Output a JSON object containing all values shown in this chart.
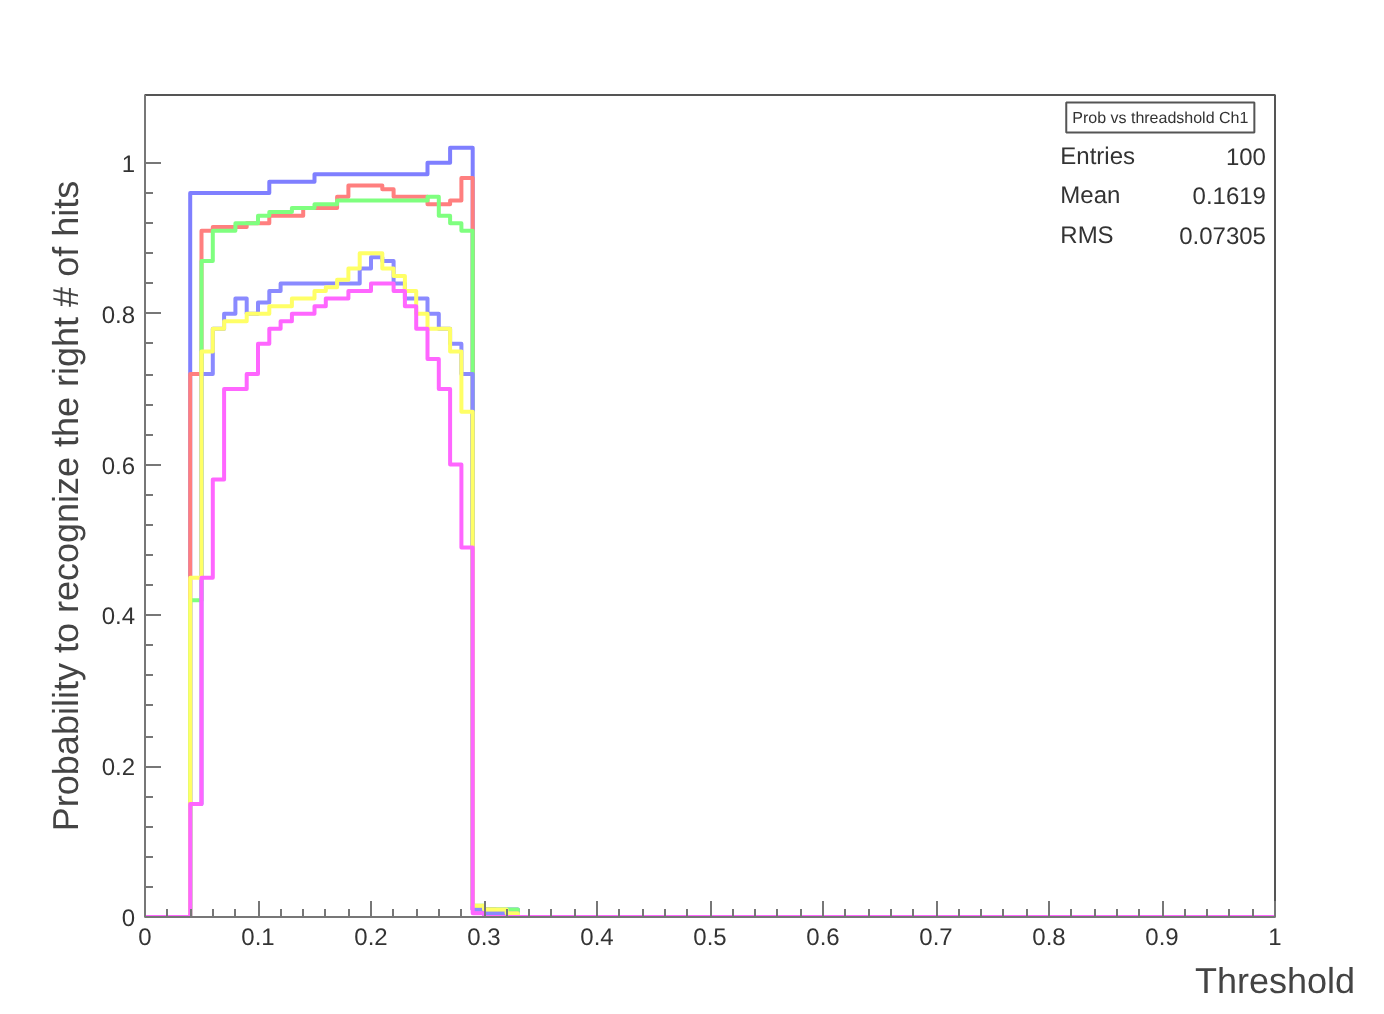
{
  "chart_data": {
    "type": "histogram",
    "xlabel": "Threshold",
    "ylabel": "Probability to recognize the right # of hits",
    "bins": [
      0,
      0.04,
      0.05,
      0.06,
      0.07,
      0.08,
      0.09,
      0.1,
      0.11,
      0.12,
      0.13,
      0.14,
      0.15,
      0.16,
      0.17,
      0.18,
      0.19,
      0.2,
      0.21,
      0.22,
      0.23,
      0.24,
      0.25,
      0.26,
      0.27,
      0.28,
      0.29,
      0.3,
      0.31,
      0.32,
      0.33,
      1
    ],
    "series": [
      {
        "color": "#7f7fff",
        "values": [
          0,
          0.96,
          0.96,
          0.96,
          0.96,
          0.96,
          0.96,
          0.96,
          0.975,
          0.975,
          0.975,
          0.975,
          0.985,
          0.985,
          0.985,
          0.985,
          0.985,
          0.985,
          0.985,
          0.985,
          0.985,
          0.985,
          1.0,
          1.0,
          1.02,
          1.02,
          0.01,
          0.01,
          0.01,
          0.01,
          0
        ]
      },
      {
        "color": "#ff7f7f",
        "values": [
          0,
          0.72,
          0.91,
          0.915,
          0.915,
          0.915,
          0.92,
          0.92,
          0.93,
          0.93,
          0.93,
          0.94,
          0.94,
          0.94,
          0.955,
          0.97,
          0.97,
          0.97,
          0.965,
          0.955,
          0.955,
          0.955,
          0.945,
          0.945,
          0.95,
          0.98,
          0.01,
          0.01,
          0.005,
          0.005,
          0
        ]
      },
      {
        "color": "#7fff7f",
        "values": [
          0,
          0.42,
          0.87,
          0.91,
          0.91,
          0.92,
          0.92,
          0.93,
          0.935,
          0.935,
          0.94,
          0.94,
          0.945,
          0.945,
          0.95,
          0.95,
          0.95,
          0.95,
          0.95,
          0.95,
          0.95,
          0.95,
          0.955,
          0.93,
          0.92,
          0.91,
          0.015,
          0.01,
          0.01,
          0.01,
          0
        ]
      },
      {
        "color": "#8a8aff",
        "values": [
          0,
          0.15,
          0.72,
          0.78,
          0.8,
          0.82,
          0.8,
          0.815,
          0.83,
          0.84,
          0.84,
          0.84,
          0.84,
          0.84,
          0.84,
          0.84,
          0.86,
          0.875,
          0.87,
          0.84,
          0.82,
          0.82,
          0.8,
          0.78,
          0.76,
          0.72,
          0.01,
          0.005,
          0.005,
          0.005,
          0
        ]
      },
      {
        "color": "#ffff66",
        "values": [
          0,
          0.45,
          0.75,
          0.78,
          0.79,
          0.79,
          0.8,
          0.8,
          0.81,
          0.81,
          0.82,
          0.82,
          0.83,
          0.835,
          0.845,
          0.86,
          0.88,
          0.88,
          0.86,
          0.85,
          0.83,
          0.8,
          0.78,
          0.78,
          0.75,
          0.67,
          0.015,
          0.01,
          0.01,
          0.005,
          0
        ]
      },
      {
        "color": "#ff66ff",
        "values": [
          0,
          0.15,
          0.45,
          0.58,
          0.7,
          0.7,
          0.72,
          0.76,
          0.78,
          0.79,
          0.8,
          0.8,
          0.81,
          0.82,
          0.82,
          0.83,
          0.83,
          0.84,
          0.84,
          0.83,
          0.81,
          0.78,
          0.74,
          0.7,
          0.6,
          0.49,
          0.005,
          0,
          0,
          0,
          0
        ]
      }
    ],
    "xlim": [
      0,
      1
    ],
    "ylim": [
      0,
      1.09
    ],
    "xticks": [
      0,
      0.1,
      0.2,
      0.3,
      0.4,
      0.5,
      0.6,
      0.7,
      0.8,
      0.9,
      1
    ],
    "yticks": [
      0,
      0.2,
      0.4,
      0.6,
      0.8,
      1
    ],
    "annotations": [
      "Prob vs threadshold Ch1",
      "Entries",
      "100",
      "Mean",
      "0.1619",
      "RMS",
      "0.07305"
    ],
    "grid": false
  }
}
